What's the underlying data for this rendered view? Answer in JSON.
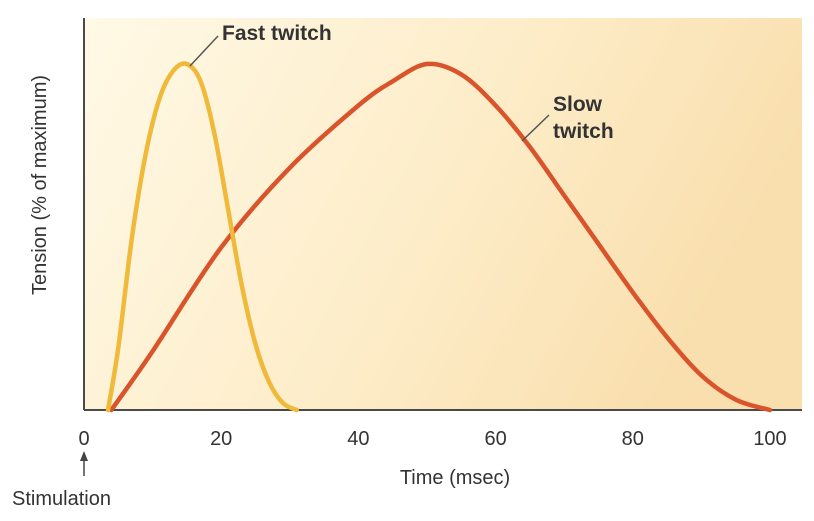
{
  "chart_data": {
    "type": "line",
    "title": "",
    "xlabel": "Time (msec)",
    "ylabel": "Tension (% of maximum)",
    "xlim": [
      0,
      100
    ],
    "ylim": [
      0,
      100
    ],
    "xticks": [
      "0",
      "20",
      "40",
      "60",
      "80",
      "100"
    ],
    "xtick_values": [
      0,
      20,
      40,
      60,
      80,
      100
    ],
    "annotation": {
      "text": "Stimulation",
      "x": 0
    },
    "grid": false,
    "series": [
      {
        "name": "Fast twitch",
        "label_lines": [
          "Fast twitch"
        ],
        "color": "#f0b93a",
        "x": [
          3.5,
          5,
          7,
          9,
          11,
          13,
          15,
          17,
          19,
          21,
          23,
          25,
          27,
          29,
          31
        ],
        "y": [
          0,
          18,
          50,
          74,
          90,
          98,
          100,
          95,
          80,
          58,
          36,
          19,
          8,
          2,
          0
        ]
      },
      {
        "name": "Slow twitch",
        "label_lines": [
          "Slow",
          "twitch"
        ],
        "color": "#d9532b",
        "x": [
          4,
          10,
          20,
          30,
          40,
          45,
          50,
          55,
          60,
          65,
          70,
          75,
          80,
          85,
          90,
          95,
          100
        ],
        "y": [
          0,
          17,
          47,
          70,
          88,
          95,
          100,
          97,
          88,
          76,
          62,
          48,
          34,
          21,
          10,
          3,
          0
        ]
      }
    ]
  }
}
